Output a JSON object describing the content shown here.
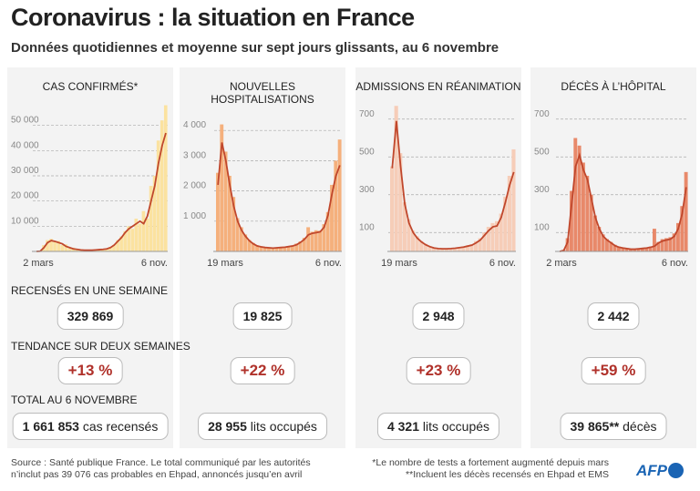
{
  "header": {
    "title": "Coronavirus : la situation en France",
    "subtitle": "Données quotidiennes et moyenne sur sept jours glissants, au 6 novembre"
  },
  "rows": {
    "weekly": "RECENSÉS EN UNE SEMAINE",
    "trend": "TENDANCE SUR DEUX SEMAINES",
    "total": "TOTAL AU 6 NOVEMBRE"
  },
  "colors": {
    "line": "#c0472c",
    "trend": "#b0312a"
  },
  "panels": [
    {
      "weekly": "329 869",
      "trend": "+13 %",
      "total_value": "1 661 853",
      "total_unit": "cas recensés"
    },
    {
      "weekly": "19 825",
      "trend": "+22 %",
      "total_value": "28 955",
      "total_unit": "lits occupés"
    },
    {
      "weekly": "2 948",
      "trend": "+23 %",
      "total_value": "4 321",
      "total_unit": "lits occupés"
    },
    {
      "weekly": "2 442",
      "trend": "+59 %",
      "total_value": "39 865**",
      "total_unit": "décès"
    }
  ],
  "chart_data": [
    {
      "type": "bar+line",
      "title": "CAS CONFIRMÉS*",
      "bar_color": "#fbe2a0",
      "ylim": [
        0,
        60000
      ],
      "yticks": [
        10000,
        20000,
        30000,
        40000,
        50000
      ],
      "ytick_labels": [
        "10 000",
        "20 000",
        "30 000",
        "40 000",
        "50 000"
      ],
      "xtick_labels": [
        "2 mars",
        "6 nov."
      ],
      "grid": true,
      "daily": [
        0,
        300,
        2500,
        4500,
        5000,
        3800,
        4200,
        2500,
        2800,
        1200,
        1500,
        600,
        900,
        400,
        700,
        500,
        800,
        600,
        1100,
        900,
        1800,
        2600,
        4500,
        6000,
        8000,
        10000,
        9000,
        13000,
        11000,
        16000,
        13000,
        26000,
        30000,
        44000,
        52000,
        58000
      ],
      "average": [
        0,
        100,
        1500,
        3500,
        4300,
        4000,
        3500,
        3000,
        2000,
        1500,
        1000,
        800,
        600,
        500,
        500,
        500,
        600,
        700,
        800,
        1000,
        1500,
        2500,
        4000,
        5500,
        7500,
        9000,
        10000,
        11000,
        12000,
        11000,
        14000,
        20000,
        26000,
        35000,
        42000,
        47000
      ]
    },
    {
      "type": "bar+line",
      "title": "NOUVELLES HOSPITALISATIONS",
      "bar_color": "#f5b07c",
      "ylim": [
        0,
        5000
      ],
      "yticks": [
        1000,
        2000,
        3000,
        4000
      ],
      "ytick_labels": [
        "1 000",
        "2 000",
        "3 000",
        "4 000"
      ],
      "xtick_labels": [
        "19 mars",
        "6 nov."
      ],
      "grid": true,
      "daily": [
        2600,
        4200,
        3300,
        2500,
        1800,
        1100,
        800,
        560,
        380,
        280,
        200,
        170,
        140,
        130,
        120,
        130,
        150,
        160,
        180,
        200,
        260,
        330,
        450,
        800,
        650,
        700,
        680,
        900,
        1300,
        2200,
        3000,
        3700
      ],
      "average": [
        2200,
        3600,
        3000,
        2200,
        1500,
        1000,
        700,
        500,
        350,
        250,
        180,
        150,
        130,
        120,
        110,
        120,
        130,
        140,
        160,
        180,
        220,
        300,
        400,
        550,
        600,
        620,
        650,
        800,
        1200,
        1900,
        2500,
        2850
      ]
    },
    {
      "type": "bar+line",
      "title": "ADMISSIONS EN RÉANIMATION",
      "bar_color": "#f6cdb8",
      "ylim": [
        0,
        800
      ],
      "yticks": [
        100,
        300,
        500,
        700
      ],
      "ytick_labels": [
        "100",
        "300",
        "500",
        "700"
      ],
      "xtick_labels": [
        "19 mars",
        "6 nov."
      ],
      "grid": true,
      "daily": [
        450,
        770,
        520,
        260,
        170,
        110,
        80,
        55,
        40,
        28,
        20,
        16,
        15,
        15,
        16,
        18,
        22,
        26,
        32,
        38,
        55,
        70,
        100,
        130,
        150,
        160,
        200,
        290,
        400,
        540
      ],
      "average": [
        440,
        690,
        450,
        250,
        150,
        100,
        70,
        50,
        35,
        25,
        18,
        15,
        14,
        14,
        15,
        17,
        20,
        23,
        28,
        33,
        45,
        60,
        85,
        110,
        130,
        135,
        180,
        260,
        350,
        420
      ]
    },
    {
      "type": "bar+line",
      "title": "DÉCÈS À L’HÔPITAL",
      "bar_color": "#e8896a",
      "ylim": [
        0,
        800
      ],
      "yticks": [
        100,
        300,
        500,
        700
      ],
      "ytick_labels": [
        "100",
        "300",
        "500",
        "700"
      ],
      "xtick_labels": [
        "2 mars",
        "6 nov."
      ],
      "grid": true,
      "daily": [
        0,
        8,
        70,
        320,
        600,
        560,
        470,
        400,
        300,
        190,
        130,
        90,
        65,
        50,
        35,
        25,
        20,
        17,
        14,
        14,
        16,
        18,
        20,
        25,
        120,
        50,
        65,
        70,
        75,
        95,
        150,
        240,
        420
      ],
      "average": [
        0,
        5,
        50,
        250,
        450,
        510,
        430,
        380,
        280,
        180,
        120,
        80,
        60,
        45,
        30,
        22,
        18,
        15,
        12,
        12,
        14,
        16,
        18,
        22,
        28,
        45,
        55,
        60,
        65,
        80,
        120,
        200,
        340
      ]
    }
  ],
  "footer": {
    "source_1": "Source : Santé publique France. Le total communiqué par les autorités",
    "source_2": "n’inclut pas 39 076 cas probables en Ehpad, annoncés jusqu’en avril",
    "note_1": "*Le nombre de tests a fortement augmenté depuis mars",
    "note_2": "**Incluent les décès recensés en Ehpad et EMS",
    "logo": "AFP"
  }
}
